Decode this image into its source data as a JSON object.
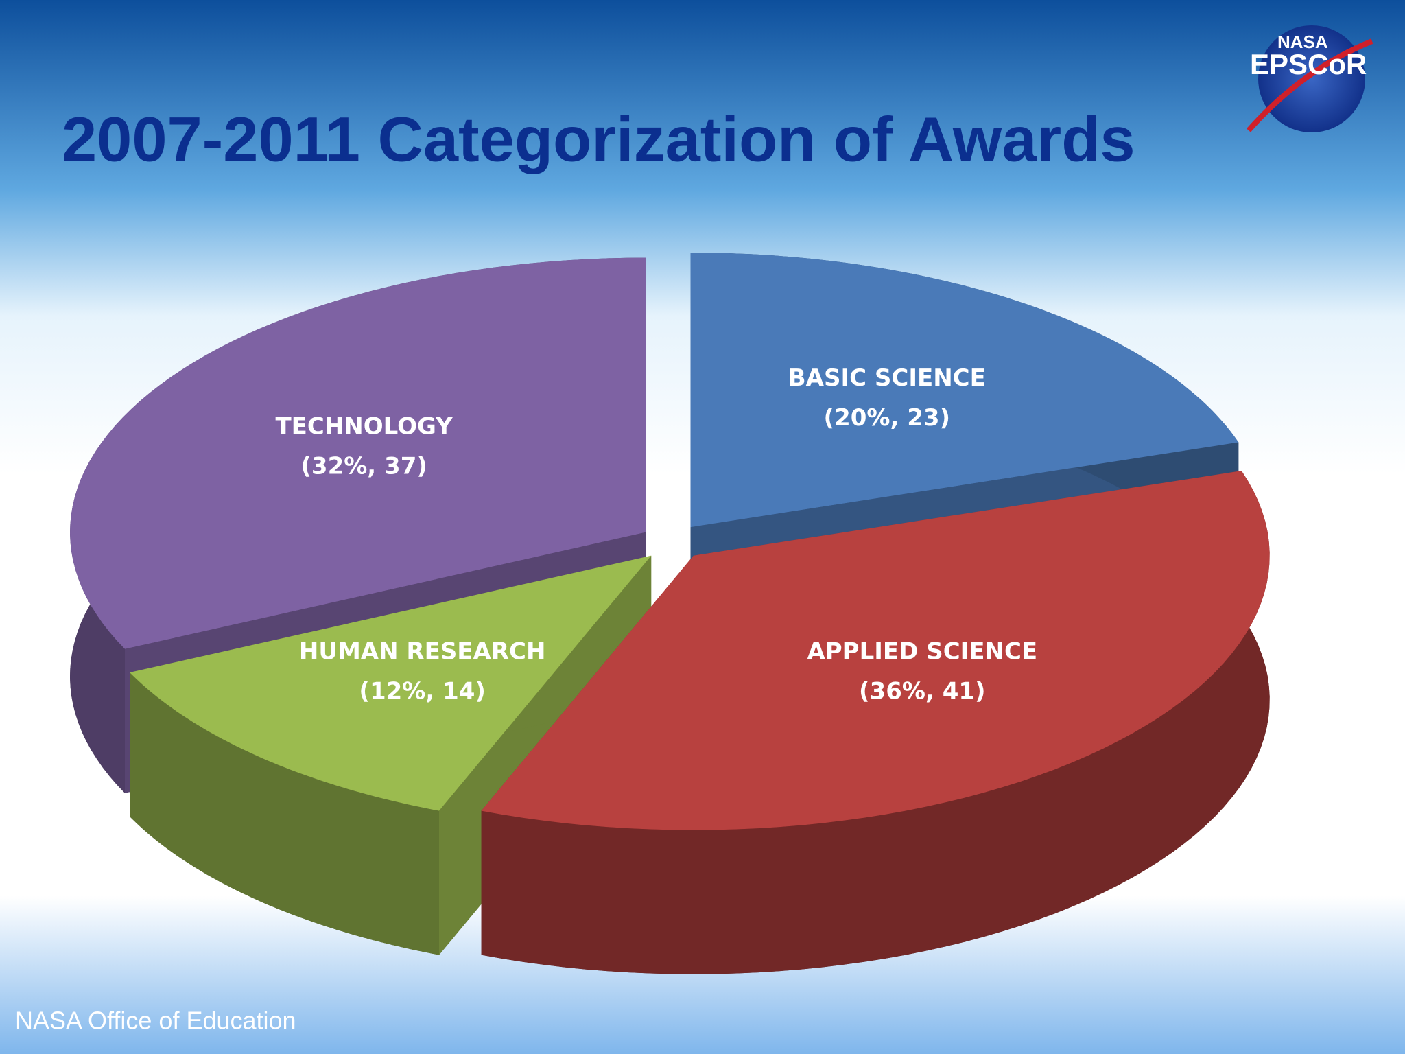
{
  "logo_text": [
    "NASA",
    "EPSCoR"
  ],
  "footer": "NASA Office of Education",
  "chart_data": {
    "type": "pie3d",
    "title": "2007-2011 Categorization of Awards",
    "categories": [
      "BASIC SCIENCE",
      "APPLIED SCIENCE",
      "HUMAN RESEARCH",
      "TECHNOLOGY"
    ],
    "values": [
      20,
      36,
      12,
      32
    ],
    "counts": [
      23,
      41,
      14,
      37
    ],
    "value_labels": [
      "(20%, 23)",
      "(36%, 41)",
      "(12%, 14)",
      "(32%, 37)"
    ],
    "colors": [
      "#4a7ab8",
      "#b8413f",
      "#9bbb4f",
      "#7e62a3"
    ]
  }
}
